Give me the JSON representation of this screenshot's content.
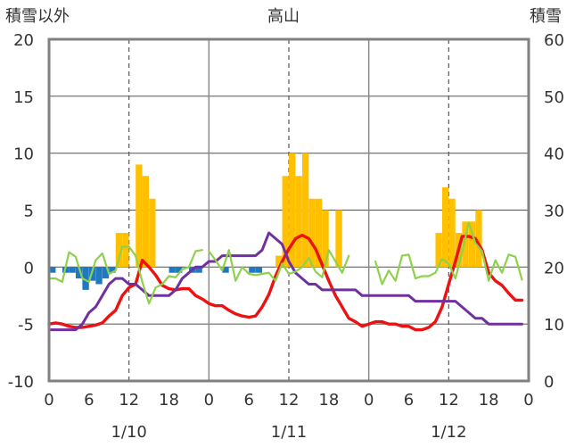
{
  "chart_data": {
    "type": "bar",
    "title": "高山",
    "ylabel_left": "積雪以外",
    "ylabel_right": "積雪",
    "ylim_left": [
      -10,
      20
    ],
    "ylim_right": [
      0,
      60
    ],
    "yticks_left": [
      "20",
      "15",
      "10",
      "5",
      "0",
      "-5",
      "-10"
    ],
    "yticks_right": [
      "60",
      "50",
      "40",
      "30",
      "20",
      "10",
      "0"
    ],
    "xlim": [
      0,
      72
    ],
    "xticks": [
      "0",
      "6",
      "12",
      "18",
      "0",
      "6",
      "12",
      "18",
      "0",
      "6",
      "12",
      "18",
      "0"
    ],
    "date_labels": [
      {
        "x": 12,
        "label": "1/10"
      },
      {
        "x": 36,
        "label": "1/11"
      },
      {
        "x": 60,
        "label": "1/12"
      }
    ],
    "day_dividers": [
      24,
      48
    ],
    "noon_lines": [
      12,
      36,
      60
    ],
    "grid": "horizontal",
    "colors": {
      "snowfall": "#FFC000",
      "precip_negative": "#1F78C0",
      "temperature": "#EE1111",
      "snow_depth": "#7030A0",
      "humidity_line": "#8ED14B",
      "frame": "#808080"
    },
    "series": [
      {
        "key": "snowfall",
        "kind": "bar",
        "axis": "left",
        "x": [
          10.5,
          11.5,
          13.5,
          14.5,
          15.5,
          34.5,
          35.5,
          36.5,
          37.5,
          38.5,
          39.5,
          40.5,
          41.5,
          43.5,
          58.5,
          59.5,
          60.5,
          61.5,
          62.5,
          63.5,
          64.5
        ],
        "values": [
          3,
          3,
          9,
          8,
          6,
          1,
          8,
          10,
          8,
          10,
          6,
          6,
          5,
          5,
          3,
          7,
          6,
          3,
          4,
          4,
          5
        ]
      },
      {
        "key": "precip_negative",
        "kind": "bar",
        "axis": "left",
        "x": [
          0.5,
          2.5,
          3.5,
          4.5,
          5.5,
          6.5,
          7.5,
          8.5,
          9.5,
          18.5,
          19.5,
          21.5,
          22.5,
          26.5,
          30.5,
          31.5
        ],
        "values": [
          -0.5,
          -0.5,
          -0.5,
          -1.0,
          -2.0,
          -1.2,
          -1.5,
          -1.0,
          -0.5,
          -0.5,
          -0.5,
          -0.5,
          -0.5,
          -0.5,
          -0.5,
          -0.5
        ]
      },
      {
        "key": "temperature",
        "kind": "line",
        "axis": "left",
        "x": [
          0,
          1,
          2,
          3,
          4,
          5,
          6,
          7,
          8,
          9,
          10,
          11,
          12,
          13,
          14,
          15,
          16,
          17,
          18,
          19,
          20,
          21,
          22,
          23,
          24,
          25,
          26,
          27,
          28,
          29,
          30,
          31,
          32,
          33,
          34,
          35,
          36,
          37,
          38,
          39,
          40,
          41,
          42,
          43,
          44,
          45,
          46,
          47,
          48,
          49,
          50,
          51,
          52,
          53,
          54,
          55,
          56,
          57,
          58,
          59,
          60,
          61,
          62,
          63,
          64,
          65,
          66,
          67,
          68,
          69,
          70,
          71
        ],
        "values": [
          -5,
          -4.9,
          -5,
          -5.2,
          -5.3,
          -5.3,
          -5.2,
          -5.1,
          -4.9,
          -4.3,
          -3.8,
          -2.5,
          -1.8,
          -1.5,
          0.6,
          0,
          -0.7,
          -1.6,
          -1.9,
          -2,
          -1.9,
          -1.9,
          -2.5,
          -2.8,
          -3.2,
          -3.4,
          -3.4,
          -3.8,
          -4.1,
          -4.3,
          -4.4,
          -4.3,
          -3.5,
          -2.4,
          -0.8,
          0.5,
          1.6,
          2.5,
          2.8,
          2.5,
          1.6,
          0.2,
          -1.2,
          -2.5,
          -3.5,
          -4.5,
          -4.8,
          -5.2,
          -5,
          -4.8,
          -4.8,
          -5,
          -5,
          -5.2,
          -5.2,
          -5.5,
          -5.5,
          -5.3,
          -4.8,
          -3.5,
          -1.5,
          0.5,
          2.7,
          2.7,
          2.5,
          1.5,
          -0.5,
          -1.2,
          -1.6,
          -2.3,
          -2.9,
          -2.9
        ]
      },
      {
        "key": "snow_depth",
        "kind": "line",
        "axis": "right",
        "x": [
          0,
          4,
          5,
          6,
          7,
          8,
          9,
          10,
          11,
          12,
          13,
          14,
          15,
          16,
          17,
          18,
          19,
          20,
          21,
          22,
          23,
          24,
          25,
          26,
          27,
          28,
          29,
          30,
          31,
          32,
          33,
          34,
          35,
          36,
          37,
          38,
          39,
          40,
          41,
          42,
          43,
          44,
          45,
          46,
          47,
          48,
          49,
          50,
          51,
          52,
          53,
          54,
          55,
          56,
          57,
          58,
          59,
          60,
          61,
          62,
          63,
          64,
          65,
          66,
          67,
          68,
          69,
          70,
          71
        ],
        "values": [
          9,
          9,
          10,
          12,
          13,
          15,
          17,
          18,
          18,
          17,
          17,
          16,
          15,
          15,
          15,
          15,
          16,
          18,
          19,
          20,
          20,
          21,
          21,
          22,
          22,
          22,
          22,
          22,
          22,
          23,
          26,
          25,
          24,
          21,
          19,
          18,
          17,
          17,
          16,
          16,
          16,
          16,
          16,
          16,
          15,
          15,
          15,
          15,
          15,
          15,
          15,
          15,
          14,
          14,
          14,
          14,
          14,
          14,
          14,
          13,
          12,
          11,
          11,
          10,
          10,
          10,
          10,
          10,
          10
        ]
      },
      {
        "key": "humidity_line",
        "kind": "line",
        "axis": "left",
        "segments": [
          {
            "x": [
              0,
              1,
              2,
              3,
              4,
              5,
              6,
              7,
              8,
              9,
              10,
              11,
              12,
              13,
              14,
              15,
              16,
              17,
              18,
              19,
              20,
              21,
              22,
              23
            ],
            "values": [
              -1,
              -1,
              -1.3,
              1.3,
              0.9,
              -1,
              -1.3,
              0.6,
              1.2,
              -0.6,
              -0.3,
              1.8,
              1.8,
              1,
              -1.3,
              -3.2,
              -1.8,
              -1.5,
              -0.8,
              -0.9,
              -0.2,
              0,
              1.4,
              1.5
            ]
          },
          {
            "x": [
              24,
              25,
              26,
              27,
              28,
              29,
              30,
              31,
              32,
              33,
              34,
              35,
              36,
              37,
              38,
              39,
              40,
              41,
              42,
              43,
              44,
              45
            ],
            "values": [
              1.4,
              0.6,
              -0.3,
              1.5,
              -1.2,
              0,
              -0.6,
              -0.7,
              -0.6,
              -0.5,
              -1.2,
              0.3,
              -0.6,
              -0.4,
              0,
              0.8,
              -0.4,
              -0.9,
              1.5,
              0.5,
              -0.5,
              1
            ]
          },
          {
            "x": [
              49,
              50,
              51,
              52,
              53,
              54,
              55,
              56,
              57,
              58,
              59,
              60,
              61,
              62,
              63,
              64,
              65,
              66,
              67,
              68,
              69,
              70,
              71
            ],
            "values": [
              0.5,
              -1.5,
              -0.3,
              -1.2,
              1,
              1.1,
              -1,
              -0.8,
              -0.8,
              -0.5,
              0.7,
              0.3,
              -1,
              1.3,
              3.9,
              2.1,
              1.4,
              -1.2,
              0.6,
              -0.5,
              1.1,
              0.9,
              -1.1
            ]
          }
        ]
      }
    ]
  }
}
